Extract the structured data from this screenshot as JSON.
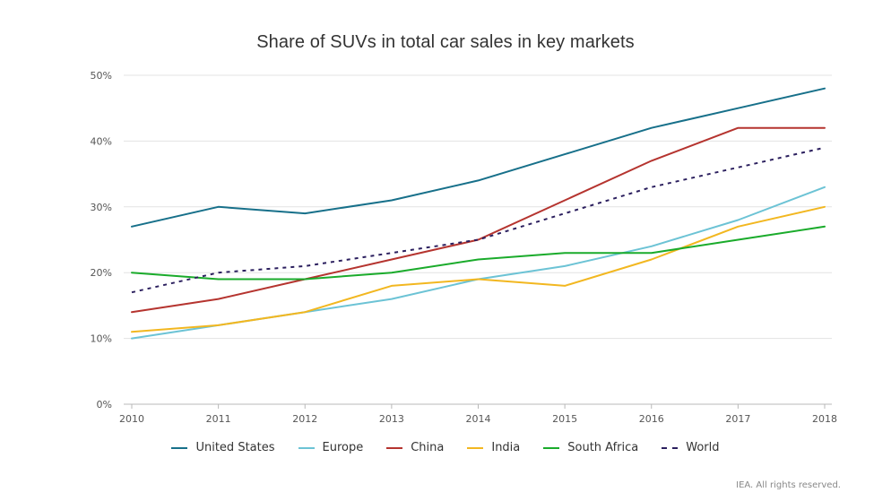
{
  "chart_data": {
    "type": "line",
    "title": "Share of SUVs in total car sales in key markets",
    "xlabel": "",
    "ylabel": "",
    "categories": [
      "2010",
      "2011",
      "2012",
      "2013",
      "2014",
      "2015",
      "2016",
      "2017",
      "2018"
    ],
    "ylim": [
      0,
      50
    ],
    "yticks": [
      0,
      10,
      20,
      30,
      40,
      50
    ],
    "ytick_labels": [
      "0%",
      "10%",
      "20%",
      "30%",
      "40%",
      "50%"
    ],
    "grid": true,
    "legend_position": "bottom",
    "series": [
      {
        "name": "United States",
        "color": "#17708a",
        "dash": false,
        "values": [
          27,
          30,
          29,
          31,
          34,
          38,
          42,
          45,
          48
        ]
      },
      {
        "name": "Europe",
        "color": "#6cc3d5",
        "dash": false,
        "values": [
          10,
          12,
          14,
          16,
          19,
          21,
          24,
          28,
          33
        ]
      },
      {
        "name": "China",
        "color": "#b5342f",
        "dash": false,
        "values": [
          14,
          16,
          19,
          22,
          25,
          31,
          37,
          42,
          42
        ]
      },
      {
        "name": "India",
        "color": "#f2b720",
        "dash": false,
        "values": [
          11,
          12,
          14,
          18,
          19,
          18,
          22,
          27,
          30
        ]
      },
      {
        "name": "South Africa",
        "color": "#1aab2b",
        "dash": false,
        "values": [
          20,
          19,
          19,
          20,
          22,
          23,
          23,
          25,
          27
        ]
      },
      {
        "name": "World",
        "color": "#2b1f5e",
        "dash": true,
        "values": [
          17,
          20,
          21,
          23,
          25,
          29,
          33,
          36,
          39
        ]
      }
    ]
  },
  "credit": "IEA. All rights reserved."
}
